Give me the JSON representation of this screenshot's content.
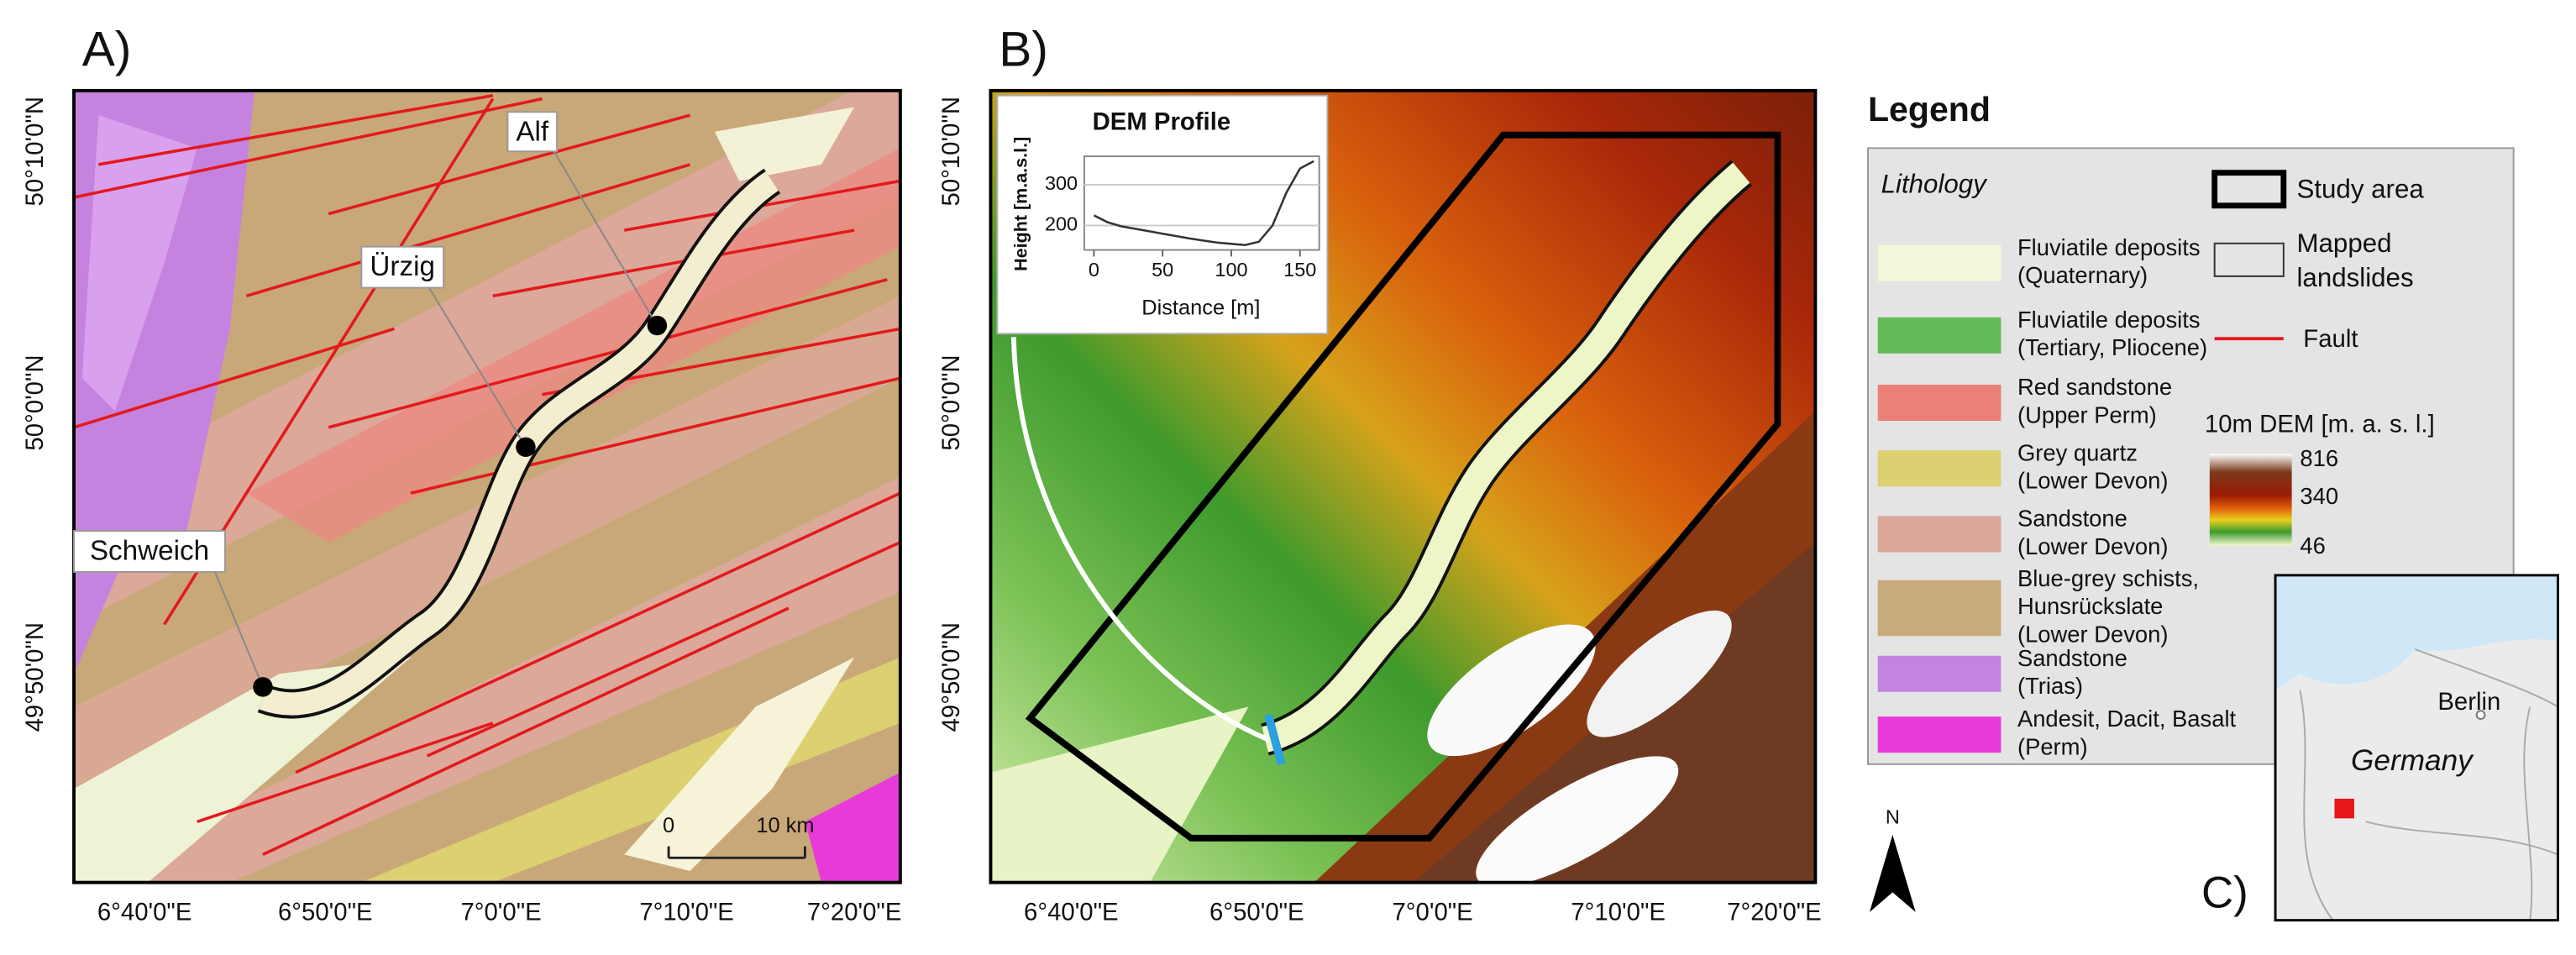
{
  "panel_a": {
    "label": "A)",
    "lon_labels": [
      "6°40'0\"E",
      "6°50'0\"E",
      "7°0'0\"E",
      "7°10'0\"E",
      "7°20'0\"E"
    ],
    "lat_labels": [
      "50°10'0\"N",
      "50°0'0\"N",
      "49°50'0\"N"
    ],
    "places": [
      "Alf",
      "Ürzig",
      "Schweich"
    ],
    "scale_bar": [
      "0",
      "10 km"
    ]
  },
  "panel_b": {
    "label": "B)",
    "lon_labels": [
      "6°40'0\"E",
      "6°50'0\"E",
      "7°0'0\"E",
      "7°10'0\"E",
      "7°20'0\"E"
    ],
    "lat_labels": [
      "50°10'0\"N",
      "50°0'0\"N",
      "49°50'0\"N"
    ],
    "profile": {
      "type": "line",
      "title": "DEM Profile",
      "y_label": "Height [m.a.s.l.]",
      "x_label": "Distance [m]",
      "x": [
        0,
        10,
        20,
        30,
        40,
        50,
        60,
        70,
        80,
        90,
        100,
        110,
        120,
        130,
        140,
        150,
        160
      ],
      "values": [
        225,
        208,
        198,
        192,
        186,
        180,
        174,
        168,
        163,
        158,
        155,
        152,
        160,
        200,
        280,
        340,
        358
      ],
      "color": "#333333",
      "xlim": [
        -7,
        164
      ],
      "ylim": [
        140,
        370
      ],
      "xticks": [
        0,
        50,
        100,
        150
      ],
      "yticks": [
        200,
        300
      ],
      "grid": true
    }
  },
  "legend": {
    "title": "Legend",
    "lithology_title": "Lithology",
    "lithology": [
      {
        "lines": [
          "Fluviatile deposits",
          "(Quaternary)"
        ],
        "color": "#f2f7d9"
      },
      {
        "lines": [
          "Fluviatile deposits",
          "(Tertiary, Pliocene)"
        ],
        "color": "#62bb58"
      },
      {
        "lines": [
          "Red sandstone",
          "(Upper Perm)"
        ],
        "color": "#eb8077"
      },
      {
        "lines": [
          "Grey quartz",
          "(Lower Devon)"
        ],
        "color": "#dcd071"
      },
      {
        "lines": [
          "Sandstone",
          "(Lower Devon)"
        ],
        "color": "#dba89a"
      },
      {
        "lines": [
          "Blue-grey schists,",
          "Hunsrückslate",
          "(Lower Devon)"
        ],
        "color": "#c9aa7b"
      },
      {
        "lines": [
          "Sandstone",
          "(Trias)"
        ],
        "color": "#c583e0"
      },
      {
        "lines": [
          "Andesit, Dacit, Basalt",
          "(Perm)"
        ],
        "color": "#e83ad8"
      }
    ],
    "study_area": "Study area",
    "landslides": [
      "Mapped",
      "landslides"
    ],
    "fault": "Fault",
    "dem_title": "10m DEM [m. a. s. l.]",
    "dem_labels": [
      "816",
      "340",
      "46"
    ]
  },
  "inset": {
    "city": "Berlin",
    "country": "Germany",
    "label": "C)"
  },
  "north": "N"
}
